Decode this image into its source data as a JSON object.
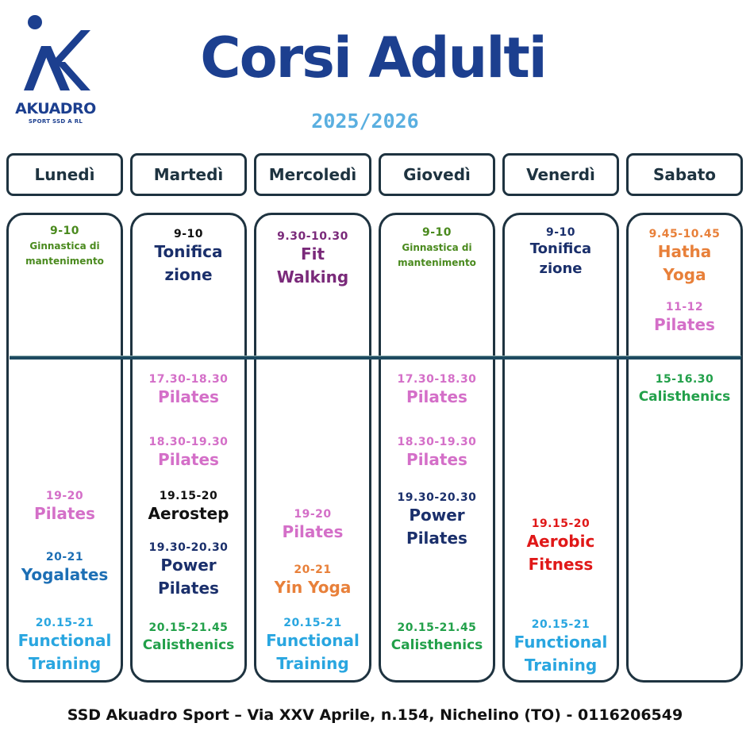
{
  "logo": {
    "name": "AKUADRO",
    "sub": "SPORT SSD A RL",
    "color": "#1c3f8f"
  },
  "title": "Corsi Adulti",
  "year": "2025/2026",
  "days": [
    "Lunedì",
    "Martedì",
    "Mercoledì",
    "Giovedì",
    "Venerdì",
    "Sabato"
  ],
  "colors": {
    "dark_navy": "#1a2f6b",
    "olive_green": "#4a8a1e",
    "pink": "#d46fc8",
    "purple": "#7a2a7a",
    "orange": "#e8803a",
    "light_blue": "#29a6e0",
    "blue": "#1d6fb5",
    "green": "#22a04a",
    "red": "#e01818",
    "black": "#111111"
  },
  "schedule": {
    "mon": [
      {
        "time": "9-10",
        "name": "Ginnastica di mantenimento"
      },
      {
        "time": "19-20",
        "name": "Pilates"
      },
      {
        "time": "20-21",
        "name": "Yogalates"
      },
      {
        "time": "20.15-21",
        "name": "Functional Training"
      }
    ],
    "tue": [
      {
        "time": "9-10",
        "name": "Tonifica zione"
      },
      {
        "time": "17.30-18.30",
        "name": "Pilates"
      },
      {
        "time": "18.30-19.30",
        "name": "Pilates"
      },
      {
        "time": "19.15-20",
        "name": "Aerostep"
      },
      {
        "time": "19.30-20.30",
        "name": "Power Pilates"
      },
      {
        "time": "20.15-21.45",
        "name": "Calisthenics"
      }
    ],
    "wed": [
      {
        "time": "9.30-10.30",
        "name": "Fit Walking"
      },
      {
        "time": "19-20",
        "name": "Pilates"
      },
      {
        "time": "20-21",
        "name": "Yin Yoga"
      },
      {
        "time": "20.15-21",
        "name": "Functional Training"
      }
    ],
    "thu": [
      {
        "time": "9-10",
        "name": "Ginnastica di mantenimento"
      },
      {
        "time": "17.30-18.30",
        "name": "Pilates"
      },
      {
        "time": "18.30-19.30",
        "name": "Pilates"
      },
      {
        "time": "19.30-20.30",
        "name": "Power Pilates"
      },
      {
        "time": "20.15-21.45",
        "name": "Calisthenics"
      }
    ],
    "fri": [
      {
        "time": "9-10",
        "name": "Tonifica zione"
      },
      {
        "time": "19.15-20",
        "name": "Aerobic Fitness"
      },
      {
        "time": "20.15-21",
        "name": "Functional Training"
      }
    ],
    "sat": [
      {
        "time": "9.45-10.45",
        "name": "Hatha Yoga"
      },
      {
        "time": "11-12",
        "name": "Pilates"
      },
      {
        "time": "15-16.30",
        "name": "Calisthenics"
      }
    ]
  },
  "footer": "SSD Akuadro Sport – Via XXV Aprile, n.154, Nichelino (TO) - 0116206549"
}
